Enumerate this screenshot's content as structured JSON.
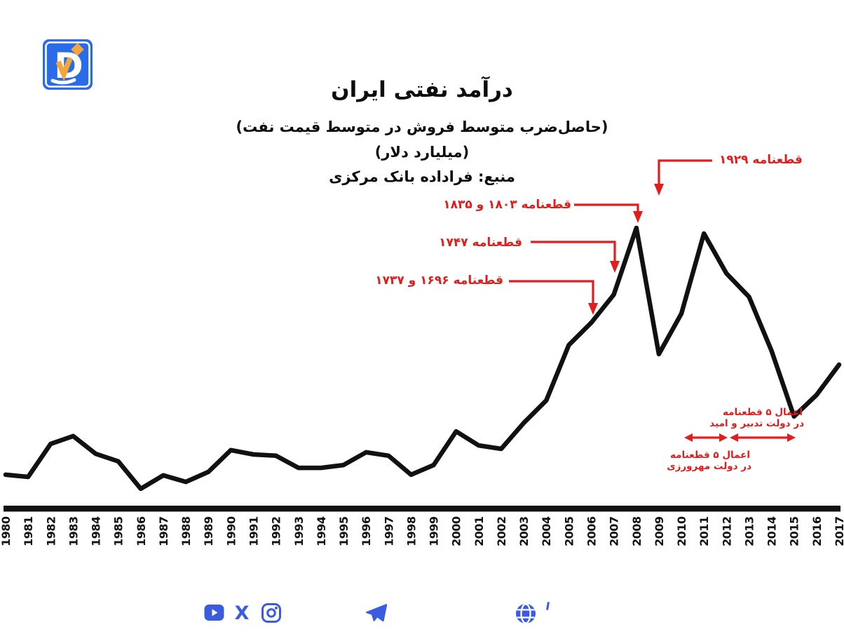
{
  "header": {
    "title": "درآمد نفتی ایران",
    "subtitle": "(حاصل‌ضرب متوسط فروش در متوسط قیمت نفت)",
    "unit": "(میلیارد دلار)",
    "source": "منبع: فراداده بانک مرکزی"
  },
  "logo": {
    "letter": "D",
    "blue": "#2a6be8",
    "orange": "#f3a73b"
  },
  "chart_data": {
    "type": "line",
    "title": "درآمد نفتی ایران",
    "subtitle": "(حاصل‌ضرب متوسط فروش در متوسط قیمت نفت)",
    "ylabel": "میلیارد دلار",
    "source": "منبع: فراداده بانک مرکزی",
    "grid": false,
    "legend": "none",
    "line_color": "#111111",
    "annotation_color": "#e11d1d",
    "ylim": [
      0,
      100
    ],
    "x": [
      1980,
      1981,
      1982,
      1983,
      1984,
      1985,
      1986,
      1987,
      1988,
      1989,
      1990,
      1991,
      1992,
      1993,
      1994,
      1995,
      1996,
      1997,
      1998,
      1999,
      2000,
      2001,
      2002,
      2003,
      2004,
      2005,
      2006,
      2007,
      2008,
      2009,
      2010,
      2011,
      2012,
      2013,
      2014,
      2015,
      2016,
      2017
    ],
    "values": [
      11.5,
      10.8,
      21.4,
      23.9,
      18.2,
      15.8,
      7.0,
      11.3,
      9.2,
      12.4,
      19.4,
      18.0,
      17.6,
      13.7,
      13.7,
      14.6,
      18.7,
      17.6,
      11.5,
      14.6,
      25.4,
      20.9,
      19.8,
      28.1,
      35.3,
      53.1,
      60.3,
      69.3,
      90.7,
      50.2,
      63.2,
      88.9,
      76.1,
      68.6,
      51.3,
      30.2,
      37.1,
      46.8
    ],
    "annotations": {
      "res_1929": "قطعنامه ۱۹۲۹",
      "res_1803_1835": "قطعنامه ۱۸۰۳ و ۱۸۳۵",
      "res_1747": "قطعنامه ۱۷۴۷",
      "res_1696_1737": "قطعنامه ۱۶۹۶ و ۱۷۳۷",
      "tadbir_line1": "اعمال ۵ قطعنامه",
      "tadbir_line2": "در دولت تدبیر و امید",
      "mehr_line1": "اعمال ۵ قطعنامه",
      "mehr_line2": "در دولت مهرورزی"
    }
  },
  "footer": {
    "icons": [
      "youtube-icon",
      "x-twitter-icon",
      "instagram-icon",
      "telegram-icon",
      "globe-icon"
    ],
    "icon_color": "#3c5ce0"
  }
}
